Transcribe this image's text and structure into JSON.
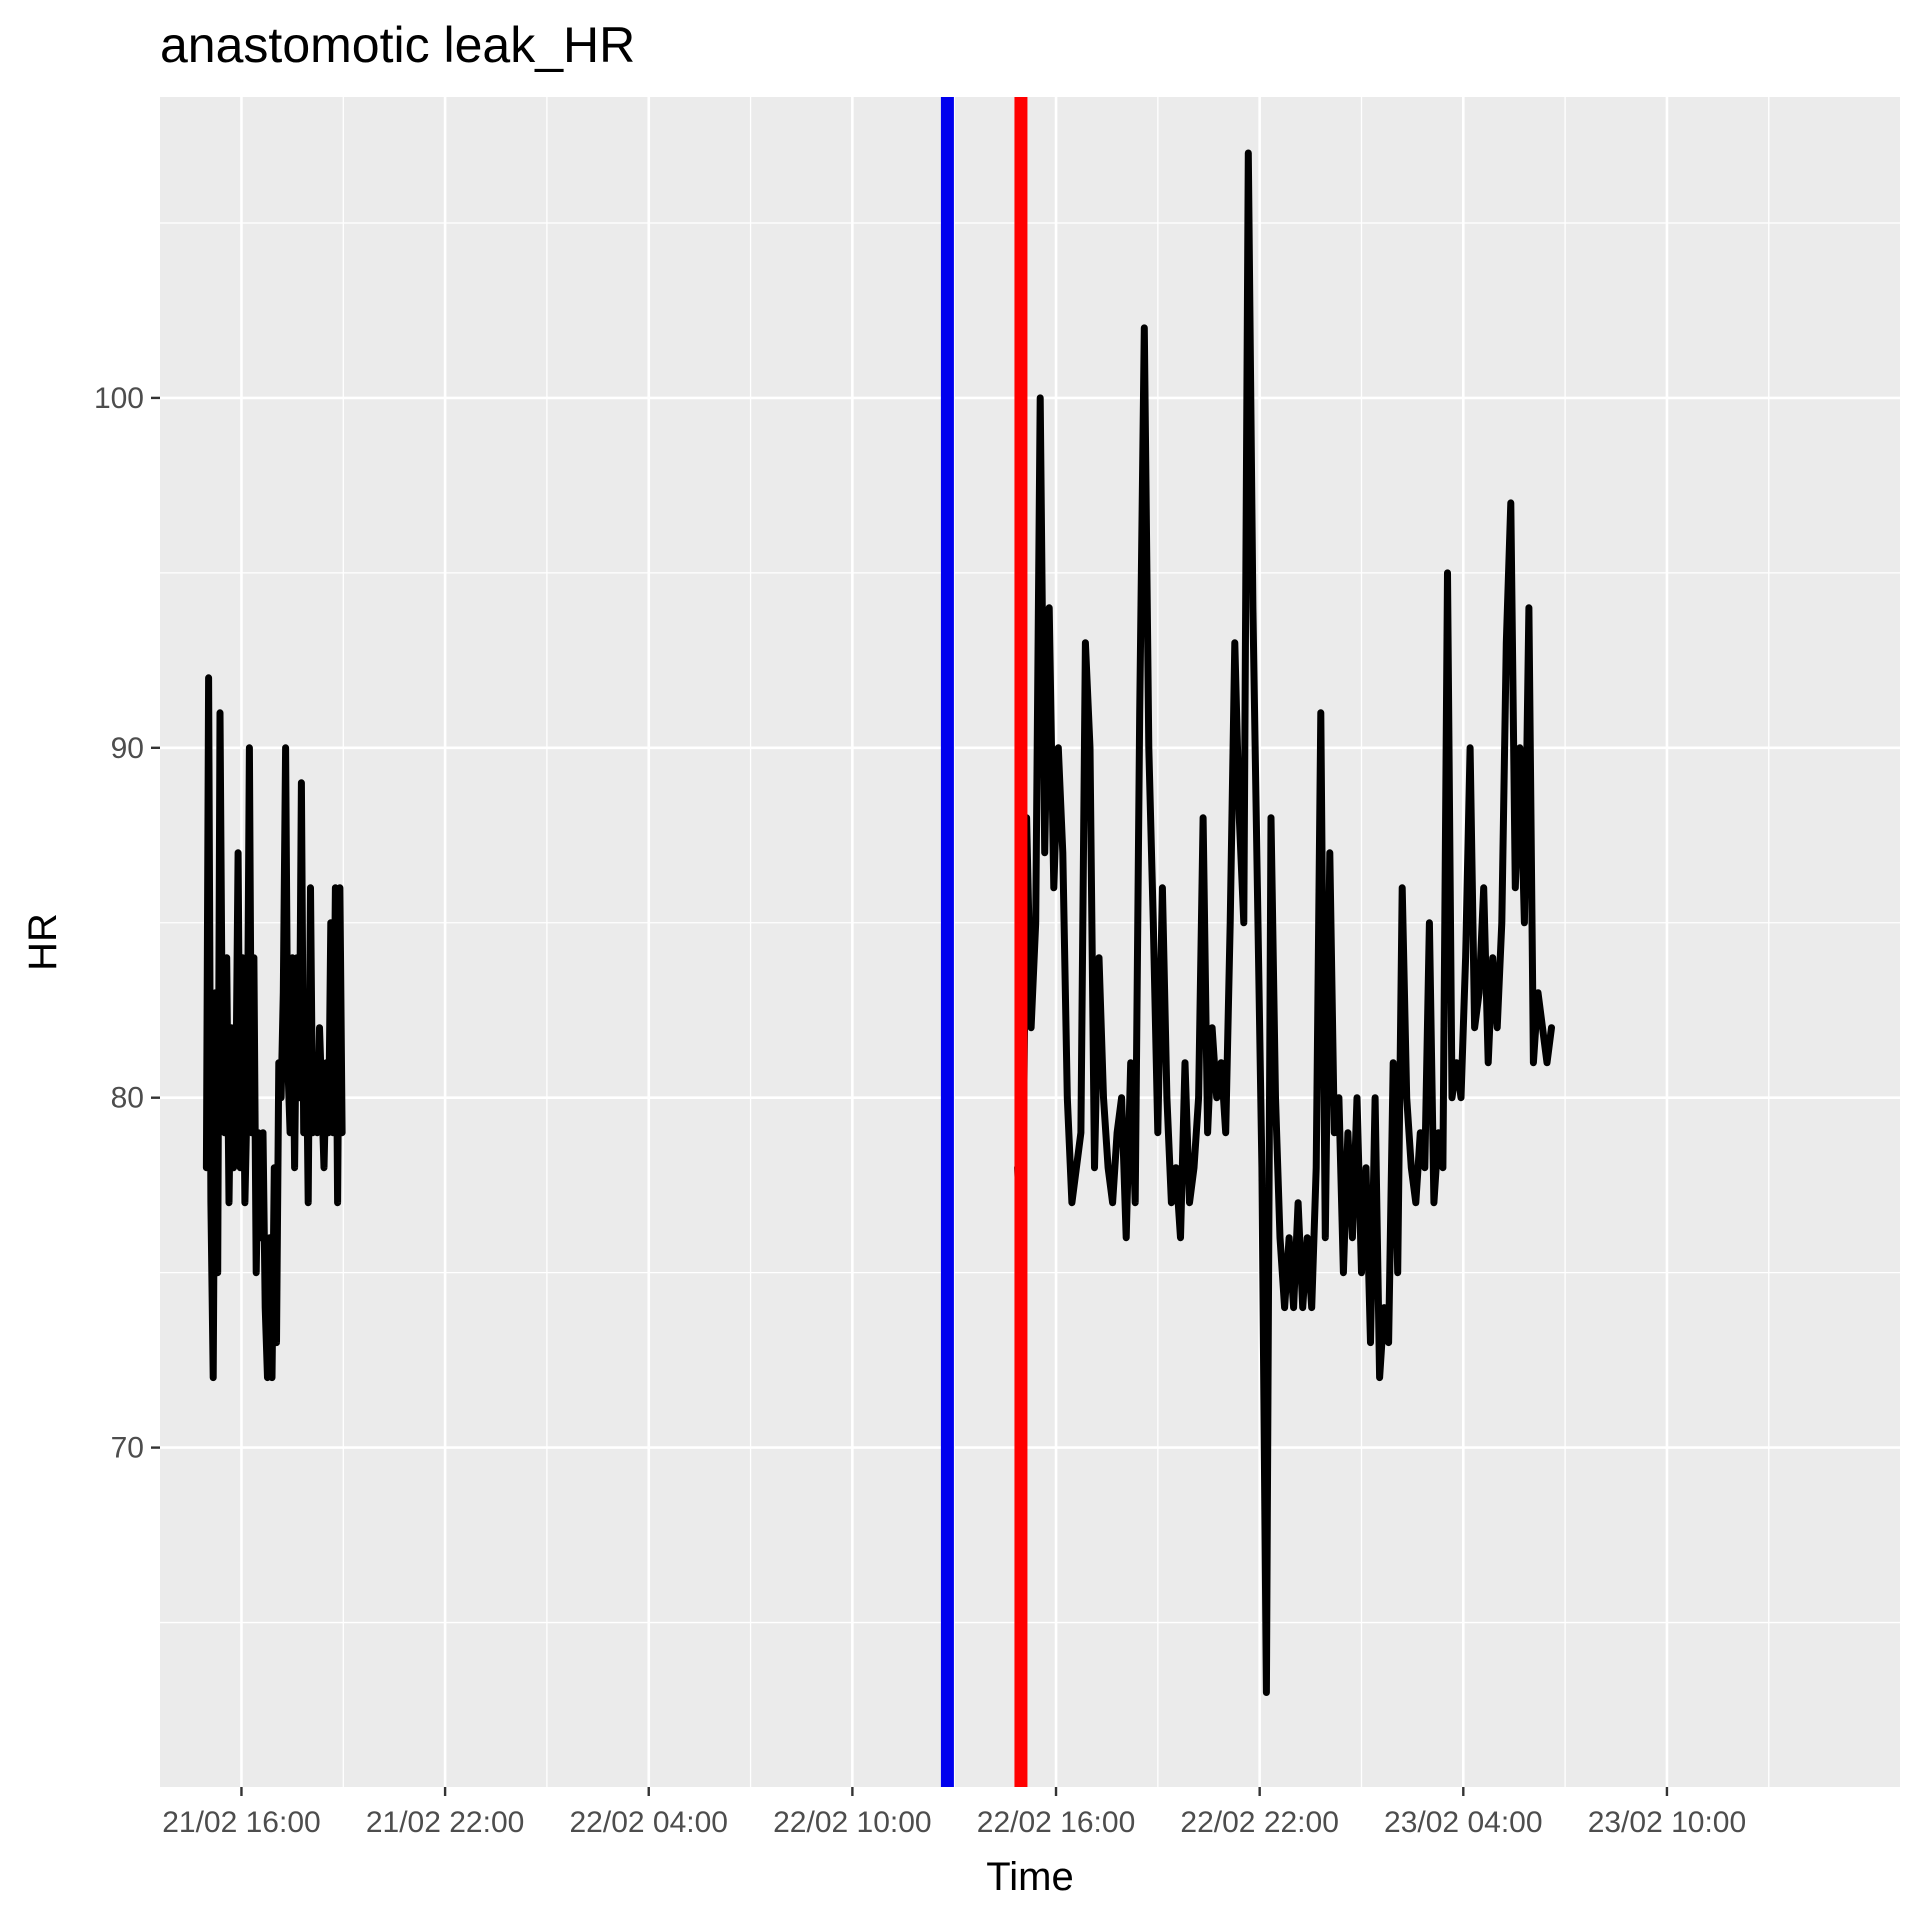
{
  "chart_data": {
    "type": "line",
    "title": "anastomotic leak_HR",
    "xlabel": "Time",
    "ylabel": "HR",
    "xlim": [
      "21/02 13:36",
      "23/02 16:52"
    ],
    "ylim": [
      60.3,
      108.6
    ],
    "x_ticks": [
      "21/02 16:00",
      "21/02 22:00",
      "22/02 04:00",
      "22/02 10:00",
      "22/02 16:00",
      "22/02 22:00",
      "23/02 04:00",
      "23/02 10:00"
    ],
    "y_ticks": [
      70,
      80,
      90,
      100
    ],
    "grid": true,
    "legend": "none",
    "panel_background": "#ebebeb",
    "grid_color": "#ffffff",
    "series_color": "#000000",
    "vlines": [
      {
        "x": "22/02 12:48",
        "color": "#0000ee"
      },
      {
        "x": "22/02 14:58",
        "color": "#ff0000"
      }
    ],
    "series": [
      {
        "x": [
          "21/02 14:58",
          "21/02 15:02",
          "21/02 15:06",
          "21/02 15:10",
          "21/02 15:14",
          "21/02 15:18",
          "21/02 15:22",
          "21/02 15:26",
          "21/02 15:30",
          "21/02 15:34",
          "21/02 15:38",
          "21/02 15:42",
          "21/02 15:46",
          "21/02 15:50",
          "21/02 15:54",
          "21/02 15:58",
          "21/02 16:02",
          "21/02 16:06",
          "21/02 16:10",
          "21/02 16:14",
          "21/02 16:18",
          "21/02 16:22",
          "21/02 16:26",
          "21/02 16:30",
          "21/02 16:34",
          "21/02 16:38",
          "21/02 16:42",
          "21/02 16:46",
          "21/02 16:50",
          "21/02 16:54",
          "21/02 16:58",
          "21/02 17:02",
          "21/02 17:06",
          "21/02 17:10",
          "21/02 17:14",
          "21/02 17:18",
          "21/02 17:22",
          "21/02 17:26",
          "21/02 17:30",
          "21/02 17:34",
          "21/02 17:38",
          "21/02 17:42",
          "21/02 17:46",
          "21/02 17:50",
          "21/02 17:54",
          "21/02 17:58",
          "21/02 18:02",
          "21/02 18:06",
          "21/02 18:10",
          "21/02 18:14",
          "21/02 18:18",
          "21/02 18:22",
          "21/02 18:26",
          "21/02 18:30",
          "21/02 18:34",
          "21/02 18:38",
          "21/02 18:42",
          "21/02 18:46",
          "21/02 18:50",
          "21/02 18:54",
          "21/02 18:58"
        ],
        "values": [
          78,
          92,
          77,
          72,
          83,
          75,
          91,
          82,
          79,
          84,
          77,
          82,
          78,
          80,
          87,
          78,
          84,
          77,
          80,
          90,
          79,
          84,
          75,
          79,
          76,
          79,
          74,
          72,
          76,
          72,
          78,
          73,
          81,
          80,
          83,
          90,
          81,
          79,
          84,
          78,
          84,
          80,
          89,
          79,
          83,
          77,
          86,
          79,
          80,
          79,
          82,
          80,
          78,
          81,
          79,
          85,
          79,
          86,
          77,
          86,
          79
        ]
      },
      {
        "x": [
          "22/02 14:52",
          "22/02 15:00",
          "22/02 15:08",
          "22/02 15:16",
          "22/02 15:24",
          "22/02 15:32",
          "22/02 15:40",
          "22/02 15:48",
          "22/02 15:56",
          "22/02 16:04",
          "22/02 16:12",
          "22/02 16:20",
          "22/02 16:28",
          "22/02 16:36",
          "22/02 16:44",
          "22/02 16:52",
          "22/02 17:00",
          "22/02 17:08",
          "22/02 17:16",
          "22/02 17:24",
          "22/02 17:32",
          "22/02 17:40",
          "22/02 17:48",
          "22/02 17:56",
          "22/02 18:04",
          "22/02 18:12",
          "22/02 18:20",
          "22/02 18:28",
          "22/02 18:36",
          "22/02 18:44",
          "22/02 18:52",
          "22/02 19:00",
          "22/02 19:08",
          "22/02 19:16",
          "22/02 19:24",
          "22/02 19:32",
          "22/02 19:40",
          "22/02 19:48",
          "22/02 19:56",
          "22/02 20:04",
          "22/02 20:12",
          "22/02 20:20",
          "22/02 20:28",
          "22/02 20:36",
          "22/02 20:44",
          "22/02 20:52",
          "22/02 21:00",
          "22/02 21:08",
          "22/02 21:16",
          "22/02 21:24",
          "22/02 21:32",
          "22/02 21:40",
          "22/02 21:48",
          "22/02 21:56",
          "22/02 22:04",
          "22/02 22:12",
          "22/02 22:20",
          "22/02 22:28",
          "22/02 22:36",
          "22/02 22:44",
          "22/02 22:52",
          "22/02 23:00",
          "22/02 23:08",
          "22/02 23:16",
          "22/02 23:24",
          "22/02 23:32",
          "22/02 23:40",
          "22/02 23:48",
          "22/02 23:56",
          "23/02 00:04",
          "23/02 00:12",
          "23/02 00:20",
          "23/02 00:28",
          "23/02 00:36",
          "23/02 00:44",
          "23/02 00:52",
          "23/02 01:00",
          "23/02 01:08",
          "23/02 01:16",
          "23/02 01:24",
          "23/02 01:32",
          "23/02 01:40",
          "23/02 01:48",
          "23/02 01:56",
          "23/02 02:04",
          "23/02 02:12",
          "23/02 02:20",
          "23/02 02:28",
          "23/02 02:36",
          "23/02 02:44",
          "23/02 02:52",
          "23/02 03:00",
          "23/02 03:08",
          "23/02 03:16",
          "23/02 03:24",
          "23/02 03:32",
          "23/02 03:40",
          "23/02 03:48",
          "23/02 03:56",
          "23/02 04:04",
          "23/02 04:12",
          "23/02 04:20",
          "23/02 04:28",
          "23/02 04:36",
          "23/02 04:44",
          "23/02 04:52",
          "23/02 05:00",
          "23/02 05:08",
          "23/02 05:16",
          "23/02 05:24",
          "23/02 05:32",
          "23/02 05:40",
          "23/02 05:48",
          "23/02 05:56",
          "23/02 06:04",
          "23/02 06:12",
          "23/02 06:20",
          "23/02 06:28",
          "23/02 06:36"
        ],
        "values": [
          78,
          75,
          88,
          82,
          85,
          100,
          87,
          94,
          86,
          90,
          87,
          80,
          77,
          78,
          79,
          93,
          90,
          78,
          84,
          80,
          78,
          77,
          79,
          80,
          76,
          81,
          77,
          91,
          102,
          90,
          85,
          79,
          86,
          80,
          77,
          78,
          76,
          81,
          77,
          78,
          80,
          88,
          79,
          82,
          80,
          81,
          79,
          85,
          93,
          88,
          85,
          107,
          94,
          86,
          78,
          63,
          88,
          80,
          76,
          74,
          76,
          74,
          77,
          74,
          76,
          74,
          78,
          91,
          76,
          87,
          79,
          80,
          75,
          79,
          76,
          80,
          75,
          78,
          73,
          80,
          72,
          74,
          73,
          81,
          75,
          86,
          80,
          78,
          77,
          79,
          78,
          85,
          77,
          79,
          78,
          95,
          80,
          81,
          80,
          84,
          90,
          82,
          83,
          86,
          81,
          84,
          82,
          85,
          93,
          97,
          86,
          90,
          85,
          94,
          81,
          83,
          82,
          81,
          82
        ]
      }
    ]
  }
}
